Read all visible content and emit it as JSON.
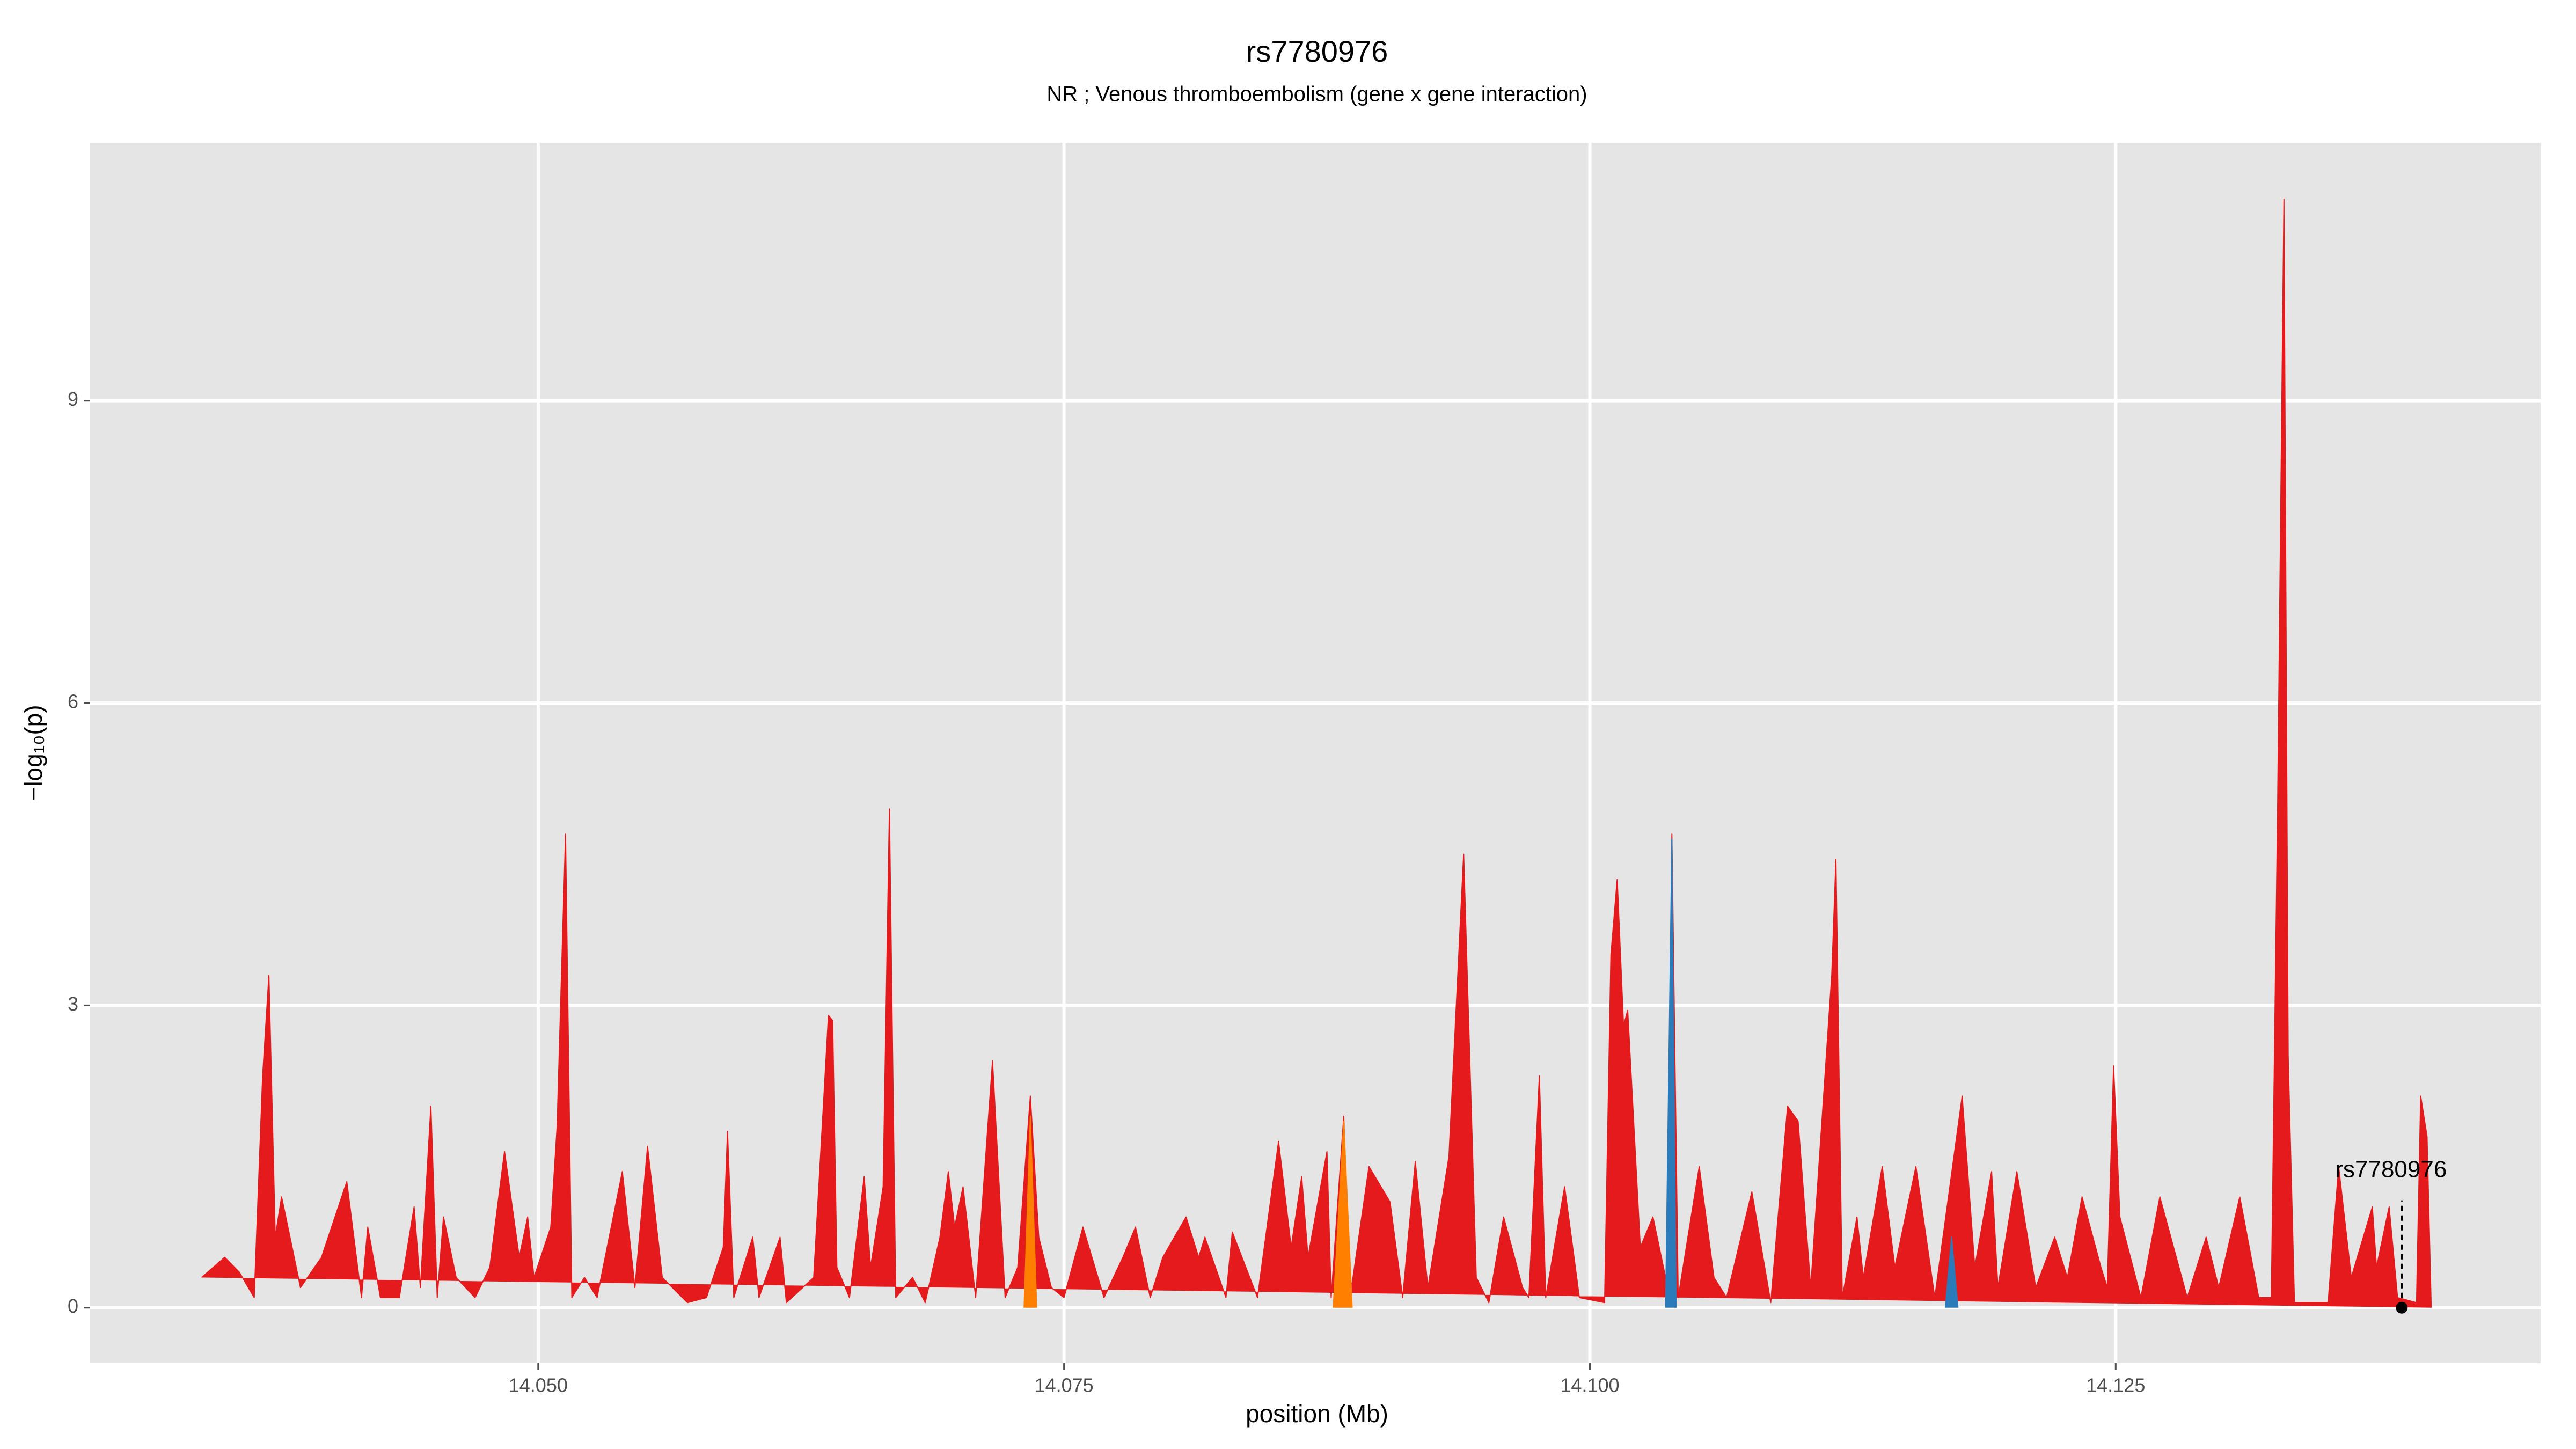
{
  "chart_data": {
    "type": "area",
    "title": "rs7780976",
    "subtitle": "NR ; Venous thromboembolism (gene x gene interaction)",
    "x_label": "position (Mb)",
    "y_label": "−log₁₀(p)",
    "xlim": [
      14.0287,
      14.1452
    ],
    "ylim": [
      -0.55,
      11.56
    ],
    "xticks": [
      {
        "value": 14.05,
        "label": "14.050"
      },
      {
        "value": 14.075,
        "label": "14.075"
      },
      {
        "value": 14.1,
        "label": "14.100"
      },
      {
        "value": 14.125,
        "label": "14.125"
      }
    ],
    "yticks": [
      0,
      3,
      6,
      9
    ],
    "grid": true,
    "series": [
      {
        "color": "#e41a1c",
        "x": [
          14.034,
          14.0351,
          14.0358,
          14.0365,
          14.0369,
          14.0372,
          14.0375,
          14.0378,
          14.0387,
          14.0397,
          14.0409,
          14.0416,
          14.0419,
          14.0425,
          14.0434,
          14.0441,
          14.0444,
          14.0449,
          14.0452,
          14.0455,
          14.0461,
          14.047,
          14.0477,
          14.0484,
          14.0491,
          14.0495,
          14.0498,
          14.0506,
          14.0509,
          14.0513,
          14.0516,
          14.0522,
          14.0528,
          14.054,
          14.0546,
          14.0552,
          14.0559,
          14.0571,
          14.058,
          14.0588,
          14.059,
          14.0593,
          14.0602,
          14.0605,
          14.0615,
          14.0618,
          14.0631,
          14.0638,
          14.064,
          14.0642,
          14.0648,
          14.0655,
          14.0658,
          14.0664,
          14.0667,
          14.067,
          14.0678,
          14.0684,
          14.0691,
          14.0695,
          14.0698,
          14.0702,
          14.0708,
          14.0716,
          14.0722,
          14.0728,
          14.0734,
          14.0738,
          14.0744,
          14.075,
          14.0759,
          14.0769,
          14.0778,
          14.0784,
          14.0791,
          14.0797,
          14.0808,
          14.0814,
          14.0817,
          14.0827,
          14.083,
          14.0842,
          14.0852,
          14.0858,
          14.0863,
          14.0866,
          14.0875,
          14.0877,
          14.0883,
          14.0886,
          14.0895,
          14.0905,
          14.0911,
          14.0917,
          14.0923,
          14.0933,
          14.094,
          14.0946,
          14.0952,
          14.0959,
          14.0968,
          14.0971,
          14.0976,
          14.0979,
          14.0988,
          14.0995,
          14.1007,
          14.101,
          14.1013,
          14.1016,
          14.1018,
          14.1024,
          14.103,
          14.1037,
          14.1039,
          14.1042,
          14.1052,
          14.1059,
          14.1065,
          14.1077,
          14.1086,
          14.1094,
          14.1099,
          14.1105,
          14.1115,
          14.1117,
          14.112,
          14.1127,
          14.113,
          14.1139,
          14.1145,
          14.1155,
          14.1164,
          14.1177,
          14.1183,
          14.1191,
          14.1194,
          14.1203,
          14.1212,
          14.1221,
          14.1227,
          14.1234,
          14.1243,
          14.1246,
          14.1249,
          14.1252,
          14.1262,
          14.1271,
          14.1284,
          14.1293,
          14.1299,
          14.1309,
          14.1318,
          14.1324,
          14.1327,
          14.133,
          14.1332,
          14.1335,
          14.1351,
          14.1356,
          14.1362,
          14.1372,
          14.1374,
          14.138,
          14.1384,
          14.1393,
          14.1395,
          14.1398,
          14.14
        ],
        "values": [
          0.3,
          0.5,
          0.35,
          0.1,
          2.3,
          3.3,
          0.7,
          1.1,
          0.2,
          0.5,
          1.25,
          0.1,
          0.8,
          0.1,
          0.1,
          1.0,
          0.2,
          2.0,
          0.1,
          0.9,
          0.3,
          0.1,
          0.4,
          1.55,
          0.5,
          0.9,
          0.3,
          0.8,
          1.8,
          4.7,
          0.1,
          0.3,
          0.1,
          1.35,
          0.2,
          1.6,
          0.3,
          0.05,
          0.1,
          0.6,
          1.75,
          0.1,
          0.7,
          0.1,
          0.7,
          0.05,
          0.3,
          2.9,
          2.85,
          0.4,
          0.1,
          1.3,
          0.4,
          1.2,
          4.95,
          0.1,
          0.3,
          0.05,
          0.7,
          1.35,
          0.8,
          1.2,
          0.1,
          2.45,
          0.1,
          0.4,
          2.1,
          0.7,
          0.2,
          0.1,
          0.8,
          0.1,
          0.5,
          0.8,
          0.1,
          0.5,
          0.9,
          0.5,
          0.7,
          0.1,
          0.75,
          0.1,
          1.65,
          0.6,
          1.3,
          0.5,
          1.55,
          0.1,
          1.9,
          0.1,
          1.4,
          1.05,
          0.1,
          1.45,
          0.2,
          1.5,
          4.5,
          0.3,
          0.05,
          0.9,
          0.2,
          0.1,
          2.3,
          0.1,
          1.2,
          0.1,
          0.05,
          3.5,
          4.25,
          2.8,
          2.95,
          0.6,
          0.9,
          0.2,
          4.7,
          0.1,
          1.4,
          0.3,
          0.1,
          1.15,
          0.05,
          2.0,
          1.85,
          0.2,
          3.3,
          4.45,
          0.1,
          0.9,
          0.3,
          1.4,
          0.4,
          1.4,
          0.1,
          2.1,
          0.4,
          1.35,
          0.2,
          1.35,
          0.2,
          0.7,
          0.3,
          1.1,
          0.4,
          0.2,
          2.4,
          0.9,
          0.1,
          1.1,
          0.1,
          0.7,
          0.2,
          1.1,
          0.1,
          0.1,
          5.0,
          11.0,
          2.5,
          0.05,
          0.05,
          1.4,
          0.3,
          1.0,
          0.4,
          1.0,
          0.1,
          0.05,
          2.1,
          1.7,
          0
        ]
      },
      {
        "color": "#2b7bba",
        "x": [
          14.1036,
          14.1039,
          14.1041,
          14.1043,
          14.1169,
          14.1172,
          14.1175
        ],
        "values": [
          0,
          4.65,
          0,
          null,
          0,
          0.7,
          0
        ]
      },
      {
        "color": "#ff7f00",
        "x": [
          14.0878,
          14.0883,
          14.0887,
          14.0889,
          14.0731,
          14.0734,
          14.0737
        ],
        "values": [
          0,
          1.85,
          0,
          null,
          0,
          1.9,
          0
        ]
      }
    ],
    "annotations": [
      {
        "text": "rs7780976",
        "x": 14.1386,
        "y": 0
      }
    ]
  }
}
